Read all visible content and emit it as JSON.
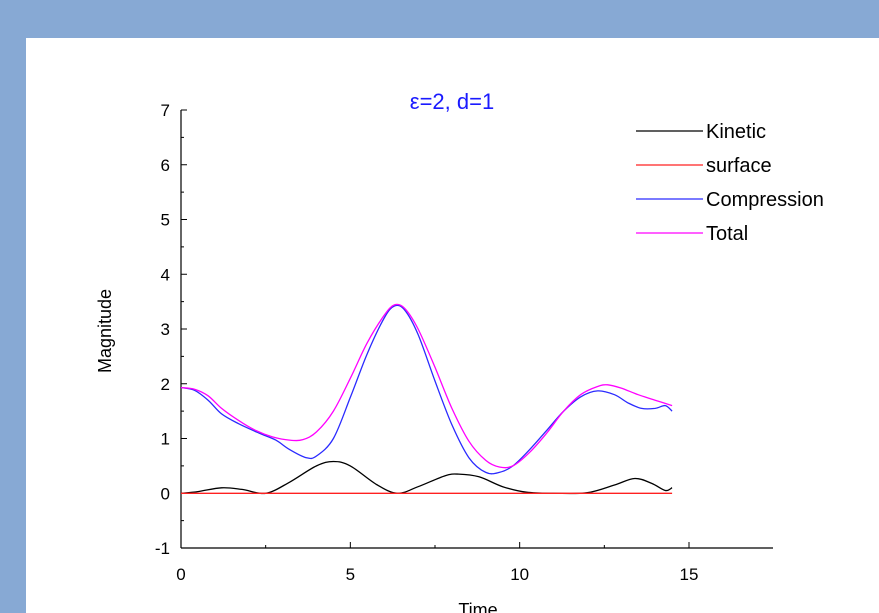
{
  "chart_data": {
    "type": "line",
    "title": "ε=2, d=1",
    "title_color": "#1a1aff",
    "xlabel": "Time",
    "ylabel": "Magnitude",
    "xlim": [
      0,
      15
    ],
    "ylim": [
      -1,
      7
    ],
    "xticks": [
      0,
      5,
      10,
      15
    ],
    "yticks": [
      -1,
      0,
      1,
      2,
      3,
      4,
      5,
      6,
      7
    ],
    "grid": false,
    "legend_position": "top-right",
    "series": [
      {
        "name": "Kinetic",
        "color": "#000000",
        "points": [
          [
            0,
            0
          ],
          [
            0.5,
            0.03
          ],
          [
            1.2,
            0.1
          ],
          [
            1.8,
            0.07
          ],
          [
            2.5,
            0.0
          ],
          [
            3.2,
            0.2
          ],
          [
            4.0,
            0.5
          ],
          [
            4.5,
            0.58
          ],
          [
            5.0,
            0.5
          ],
          [
            5.8,
            0.15
          ],
          [
            6.4,
            0.0
          ],
          [
            7.0,
            0.12
          ],
          [
            7.8,
            0.32
          ],
          [
            8.2,
            0.35
          ],
          [
            8.8,
            0.3
          ],
          [
            9.5,
            0.12
          ],
          [
            10.2,
            0.02
          ],
          [
            11,
            0.0
          ],
          [
            12,
            0.01
          ],
          [
            12.8,
            0.15
          ],
          [
            13.4,
            0.27
          ],
          [
            13.9,
            0.18
          ],
          [
            14.3,
            0.05
          ],
          [
            14.5,
            0.1
          ]
        ]
      },
      {
        "name": "surface",
        "color": "#ff2020",
        "points": [
          [
            0,
            0
          ],
          [
            14.5,
            0
          ]
        ]
      },
      {
        "name": "Compression",
        "color": "#2a2aff",
        "points": [
          [
            0,
            1.93
          ],
          [
            0.4,
            1.88
          ],
          [
            0.8,
            1.7
          ],
          [
            1.2,
            1.45
          ],
          [
            1.7,
            1.27
          ],
          [
            2.3,
            1.1
          ],
          [
            2.8,
            0.97
          ],
          [
            3.2,
            0.8
          ],
          [
            3.7,
            0.65
          ],
          [
            4.0,
            0.68
          ],
          [
            4.5,
            1.0
          ],
          [
            5.0,
            1.75
          ],
          [
            5.5,
            2.55
          ],
          [
            6.0,
            3.2
          ],
          [
            6.3,
            3.42
          ],
          [
            6.6,
            3.35
          ],
          [
            7.0,
            2.9
          ],
          [
            7.5,
            2.05
          ],
          [
            8.0,
            1.25
          ],
          [
            8.5,
            0.65
          ],
          [
            9.0,
            0.38
          ],
          [
            9.4,
            0.38
          ],
          [
            9.8,
            0.5
          ],
          [
            10.3,
            0.8
          ],
          [
            10.8,
            1.15
          ],
          [
            11.3,
            1.5
          ],
          [
            11.8,
            1.76
          ],
          [
            12.3,
            1.87
          ],
          [
            12.8,
            1.8
          ],
          [
            13.2,
            1.65
          ],
          [
            13.6,
            1.55
          ],
          [
            14.0,
            1.55
          ],
          [
            14.3,
            1.6
          ],
          [
            14.5,
            1.5
          ]
        ]
      },
      {
        "name": "Total",
        "color": "#ff00ff",
        "points": [
          [
            0,
            1.93
          ],
          [
            0.4,
            1.9
          ],
          [
            0.8,
            1.78
          ],
          [
            1.2,
            1.55
          ],
          [
            1.7,
            1.33
          ],
          [
            2.2,
            1.15
          ],
          [
            2.7,
            1.03
          ],
          [
            3.2,
            0.97
          ],
          [
            3.6,
            0.98
          ],
          [
            4.0,
            1.12
          ],
          [
            4.5,
            1.5
          ],
          [
            5.0,
            2.1
          ],
          [
            5.5,
            2.75
          ],
          [
            6.0,
            3.25
          ],
          [
            6.3,
            3.44
          ],
          [
            6.6,
            3.38
          ],
          [
            7.0,
            3.0
          ],
          [
            7.5,
            2.3
          ],
          [
            8.0,
            1.55
          ],
          [
            8.5,
            0.95
          ],
          [
            9.0,
            0.6
          ],
          [
            9.4,
            0.48
          ],
          [
            9.8,
            0.5
          ],
          [
            10.3,
            0.75
          ],
          [
            10.8,
            1.1
          ],
          [
            11.3,
            1.5
          ],
          [
            11.8,
            1.8
          ],
          [
            12.3,
            1.95
          ],
          [
            12.6,
            1.98
          ],
          [
            13.0,
            1.92
          ],
          [
            13.5,
            1.8
          ],
          [
            14.0,
            1.7
          ],
          [
            14.5,
            1.6
          ]
        ]
      }
    ]
  }
}
